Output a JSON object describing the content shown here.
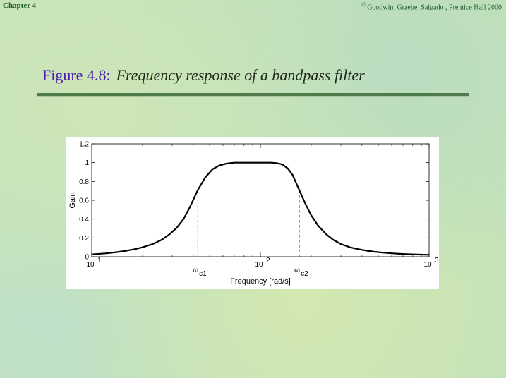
{
  "header": {
    "chapter": "Chapter 4",
    "copyright_mark": "©",
    "copyright": "Goodwin, Graebe, Salgado , Prentice Hall 2000"
  },
  "figure": {
    "label": "Figure 4.8:",
    "caption": "Frequency response of a bandpass filter"
  },
  "chart_data": {
    "type": "line",
    "xscale": "log",
    "xlim": [
      10,
      1000
    ],
    "ylim": [
      0,
      1.2
    ],
    "xlabel": "Frequency [rad/s]",
    "ylabel": "Gain",
    "y_ticks": [
      "0",
      "0.2",
      "0.4",
      "0.6",
      "0.8",
      "1",
      "1.2"
    ],
    "x_ticks": [
      {
        "value": 10,
        "base": "10",
        "exp": "1"
      },
      {
        "value": 100,
        "base": "10",
        "exp": "2"
      },
      {
        "value": 1000,
        "base": "10",
        "exp": "3"
      }
    ],
    "cutoff_marks": [
      {
        "value": 42.5,
        "symbol": "ω",
        "sub": "c1"
      },
      {
        "value": 170,
        "symbol": "ω",
        "sub": "c2"
      }
    ],
    "reference_line": 0.707,
    "grid": false,
    "series": [
      {
        "x": [
          10,
          12,
          14,
          16,
          18,
          20,
          23,
          26,
          29,
          32,
          35,
          38,
          42.5,
          47,
          52,
          57,
          63,
          70,
          77,
          85,
          95,
          105,
          115,
          125,
          135,
          145,
          155,
          170,
          185,
          200,
          220,
          245,
          270,
          300,
          340,
          380,
          430,
          480,
          540,
          600,
          680,
          760,
          850,
          950,
          1000
        ],
        "y": [
          0.025,
          0.035,
          0.048,
          0.063,
          0.08,
          0.1,
          0.135,
          0.18,
          0.24,
          0.31,
          0.4,
          0.52,
          0.707,
          0.84,
          0.93,
          0.97,
          0.99,
          1.0,
          1.0,
          1.0,
          1.0,
          1.0,
          1.0,
          0.995,
          0.98,
          0.94,
          0.87,
          0.707,
          0.56,
          0.44,
          0.33,
          0.24,
          0.18,
          0.135,
          0.1,
          0.08,
          0.063,
          0.052,
          0.043,
          0.036,
          0.03,
          0.026,
          0.023,
          0.021,
          0.02
        ]
      }
    ]
  }
}
